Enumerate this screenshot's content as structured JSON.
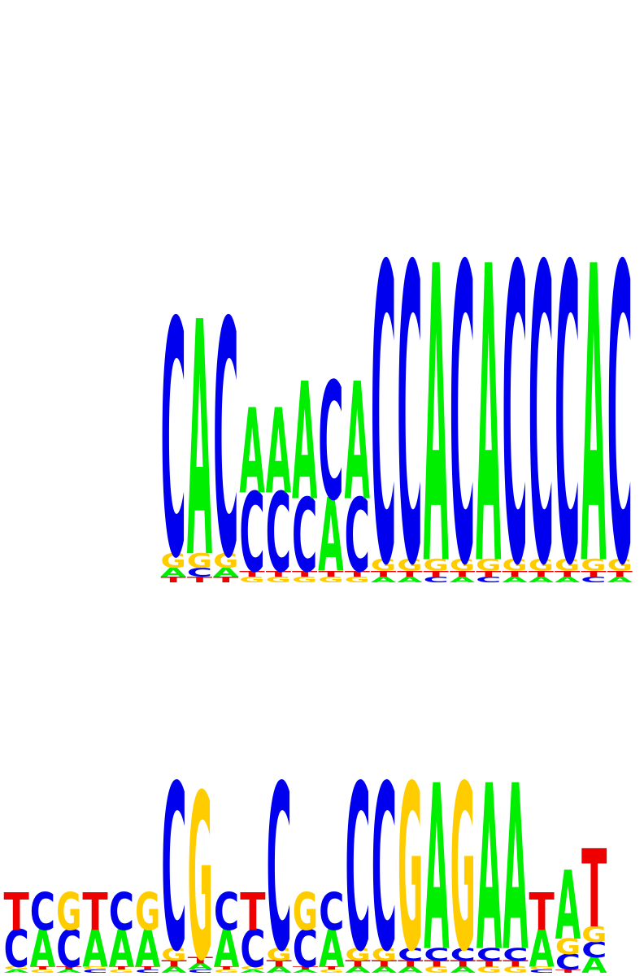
{
  "colors": {
    "A": "#00ee00",
    "C": "#0000ee",
    "G": "#ffcc00",
    "T": "#ee0000"
  },
  "chart_data": [
    {
      "type": "sequence-logo",
      "alphabet": [
        "A",
        "C",
        "G",
        "T"
      ],
      "positions": [
        {
          "A": 0.03,
          "C": 0.8,
          "G": 0.05,
          "T": 0.02
        },
        {
          "A": 0.8,
          "C": 0.03,
          "G": 0.05,
          "T": 0.02
        },
        {
          "A": 0.03,
          "C": 0.8,
          "G": 0.05,
          "T": 0.02
        },
        {
          "A": 0.29,
          "C": 0.27,
          "G": 0.02,
          "T": 0.02
        },
        {
          "A": 0.29,
          "C": 0.27,
          "G": 0.02,
          "T": 0.02
        },
        {
          "A": 0.4,
          "C": 0.25,
          "G": 0.02,
          "T": 0.02
        },
        {
          "A": 0.25,
          "C": 0.4,
          "G": 0.02,
          "T": 0.02
        },
        {
          "A": 0.4,
          "C": 0.25,
          "G": 0.02,
          "T": 0.02
        },
        {
          "A": 0.02,
          "C": 1.01,
          "G": 0.04,
          "T": 0.02
        },
        {
          "A": 0.02,
          "C": 1.01,
          "G": 0.04,
          "T": 0.02
        },
        {
          "A": 1.01,
          "C": 0.02,
          "G": 0.04,
          "T": 0.02
        },
        {
          "A": 0.02,
          "C": 1.01,
          "G": 0.04,
          "T": 0.02
        },
        {
          "A": 1.01,
          "C": 0.02,
          "G": 0.04,
          "T": 0.02
        },
        {
          "A": 0.02,
          "C": 1.01,
          "G": 0.04,
          "T": 0.02
        },
        {
          "A": 0.02,
          "C": 1.01,
          "G": 0.04,
          "T": 0.02
        },
        {
          "A": 0.02,
          "C": 1.01,
          "G": 0.04,
          "T": 0.02
        },
        {
          "A": 1.01,
          "C": 0.02,
          "G": 0.04,
          "T": 0.02
        },
        {
          "A": 0.02,
          "C": 1.01,
          "G": 0.04,
          "T": 0.02
        }
      ]
    },
    {
      "type": "sequence-logo",
      "alphabet": [
        "A",
        "C",
        "G",
        "T"
      ],
      "positions": [
        {
          "A": 0.01,
          "C": 0.12,
          "G": 0.01,
          "T": 0.12
        },
        {
          "A": 0.12,
          "C": 0.12,
          "G": 0.01,
          "T": 0.01
        },
        {
          "A": 0.01,
          "C": 0.12,
          "G": 0.12,
          "T": 0.01
        },
        {
          "A": 0.12,
          "C": 0.01,
          "G": 0.01,
          "T": 0.12
        },
        {
          "A": 0.12,
          "C": 0.12,
          "G": 0.01,
          "T": 0.01
        },
        {
          "A": 0.12,
          "C": 0.01,
          "G": 0.12,
          "T": 0.01
        },
        {
          "A": 0.02,
          "C": 0.53,
          "G": 0.04,
          "T": 0.02
        },
        {
          "A": 0.02,
          "C": 0.01,
          "G": 0.53,
          "T": 0.02
        },
        {
          "A": 0.12,
          "C": 0.12,
          "G": 0.01,
          "T": 0.01
        },
        {
          "A": 0.01,
          "C": 0.12,
          "G": 0.01,
          "T": 0.12
        },
        {
          "A": 0.02,
          "C": 0.53,
          "G": 0.04,
          "T": 0.02
        },
        {
          "A": 0.01,
          "C": 0.12,
          "G": 0.12,
          "T": 0.01
        },
        {
          "A": 0.12,
          "C": 0.12,
          "G": 0.01,
          "T": 0.01
        },
        {
          "A": 0.02,
          "C": 0.53,
          "G": 0.04,
          "T": 0.02
        },
        {
          "A": 0.02,
          "C": 0.53,
          "G": 0.04,
          "T": 0.02
        },
        {
          "A": 0.02,
          "C": 0.04,
          "G": 0.53,
          "T": 0.02
        },
        {
          "A": 0.53,
          "C": 0.04,
          "G": 0.02,
          "T": 0.02
        },
        {
          "A": 0.02,
          "C": 0.04,
          "G": 0.53,
          "T": 0.02
        },
        {
          "A": 0.53,
          "C": 0.04,
          "G": 0.02,
          "T": 0.02
        },
        {
          "A": 0.53,
          "C": 0.04,
          "G": 0.02,
          "T": 0.02
        },
        {
          "A": 0.12,
          "C": 0.01,
          "G": 0.01,
          "T": 0.12
        },
        {
          "A": 0.22,
          "C": 0.05,
          "G": 0.05,
          "T": 0.01
        },
        {
          "A": 0.05,
          "C": 0.05,
          "G": 0.05,
          "T": 0.25
        }
      ]
    }
  ]
}
